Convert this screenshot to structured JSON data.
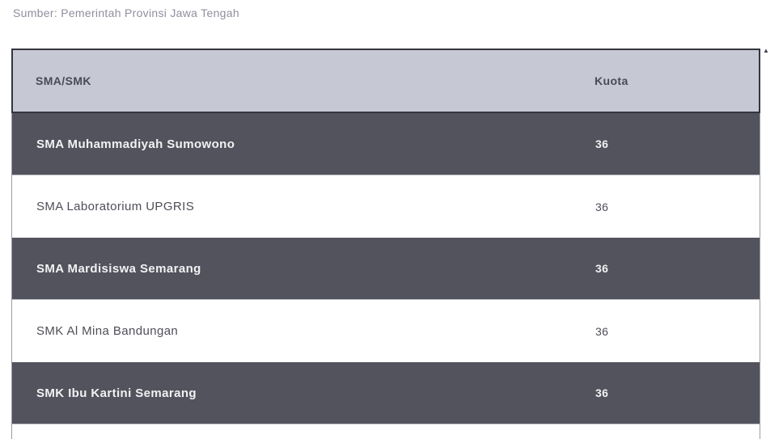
{
  "source_caption": "Sumber: Pemerintah Provinsi Jawa Tengah",
  "table": {
    "columns": [
      {
        "label": "SMA/SMK"
      },
      {
        "label": "Kuota"
      }
    ],
    "rows": [
      {
        "school": "SMA Muhammadiyah Sumowono",
        "kuota": "36"
      },
      {
        "school": "SMA Laboratorium UPGRIS",
        "kuota": "36"
      },
      {
        "school": "SMA Mardisiswa Semarang",
        "kuota": "36"
      },
      {
        "school": "SMK Al Mina Bandungan",
        "kuota": "36"
      },
      {
        "school": "SMK Ibu Kartini Semarang",
        "kuota": "36"
      }
    ]
  },
  "scrollbar": {
    "up_arrow_icon": "▲"
  },
  "colors": {
    "header_bg": "#c6c8d3",
    "header_text": "#4a4a57",
    "header_border": "#35353f",
    "dark_row_bg": "#53535d",
    "dark_row_text": "#f2f2f4",
    "light_row_bg": "#ffffff",
    "light_row_text": "#4e4e58",
    "side_border": "#9b9ba4",
    "caption_text": "#8f8f9e"
  }
}
